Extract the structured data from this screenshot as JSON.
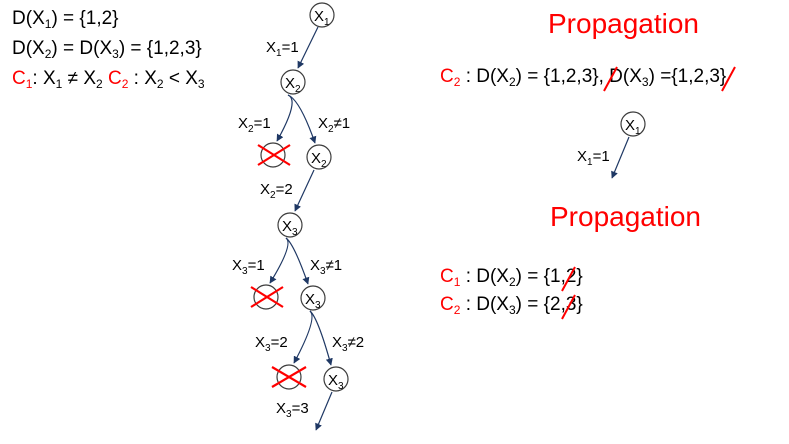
{
  "domains": {
    "var_X1": "X",
    "var_X1_sub": "1",
    "var_X1_text": " = {1,2}",
    "var_X2": "D(X",
    "var_X2_sub": "2",
    "var_X2_mid": ") = D(X",
    "var_X3_sub": "3",
    "var_X23_text": ") = {1,2,3}",
    "d_prefix": "D(",
    "d_close": ")"
  },
  "constraints": {
    "c1_name": "C",
    "c1_sub": "1",
    "c1_colon": ": X",
    "c1_x1_sub": "1",
    "c1_op": " ≠ X",
    "c1_x2_sub": "2",
    "c2_name": " C",
    "c2_sub": "2",
    "c2_colon": " : X",
    "c2_x2_sub": "2",
    "c2_op": " < X",
    "c2_x3_sub": "3"
  },
  "tree": {
    "nodes": [
      {
        "id": "n-x1",
        "var": "X",
        "sub": "1"
      },
      {
        "id": "n-x2",
        "var": "X",
        "sub": "2"
      },
      {
        "id": "n-x2b",
        "var": "X",
        "sub": "2"
      },
      {
        "id": "n-x3",
        "var": "X",
        "sub": "3"
      },
      {
        "id": "n-x3b",
        "var": "X",
        "sub": "3"
      },
      {
        "id": "n-x3c",
        "var": "X",
        "sub": "3"
      },
      {
        "id": "n-x1r",
        "var": "X",
        "sub": "1"
      }
    ],
    "edge_labels": {
      "e1": {
        "v": "X",
        "s": "1",
        "t": "=1"
      },
      "e2a": {
        "v": "X",
        "s": "2",
        "t": "=1"
      },
      "e2b": {
        "v": "X",
        "s": "2",
        "t": "≠1"
      },
      "e3": {
        "v": "X",
        "s": "2",
        "t": "=2"
      },
      "e4a": {
        "v": "X",
        "s": "3",
        "t": "=1"
      },
      "e4b": {
        "v": "X",
        "s": "3",
        "t": "≠1"
      },
      "e5a": {
        "v": "X",
        "s": "3",
        "t": "=2"
      },
      "e5b": {
        "v": "X",
        "s": "3",
        "t": "≠2"
      },
      "e6": {
        "v": "X",
        "s": "3",
        "t": "=3"
      },
      "er": {
        "v": "X",
        "s": "1",
        "t": "=1"
      }
    }
  },
  "propagation": {
    "title1": "Propagation",
    "title2": "Propagation",
    "line1": {
      "c": "C",
      "c_sub": "2",
      "a": " : D(X",
      "a_sub": "2",
      "b": ") = {1,2,",
      "b_strike": "3",
      "c2": "}, D(X",
      "d_sub": "3",
      "e": ") ={",
      "e_strike": "1",
      "f": ",2,3}"
    },
    "line2": {
      "c": "C",
      "c_sub": "1",
      "a": " : D(X",
      "a_sub": "2",
      "b": ") = {",
      "b_strike": "1",
      "c2": ",2}"
    },
    "line3": {
      "c": "C",
      "c_sub": "2",
      "a": " : D(X",
      "a_sub": "3",
      "b": ") = {",
      "b_strike": "2",
      "c2": ",3}"
    }
  },
  "colors": {
    "accent": "#ff0000",
    "edge": "#1f3864",
    "node": "#3c3c3c"
  }
}
